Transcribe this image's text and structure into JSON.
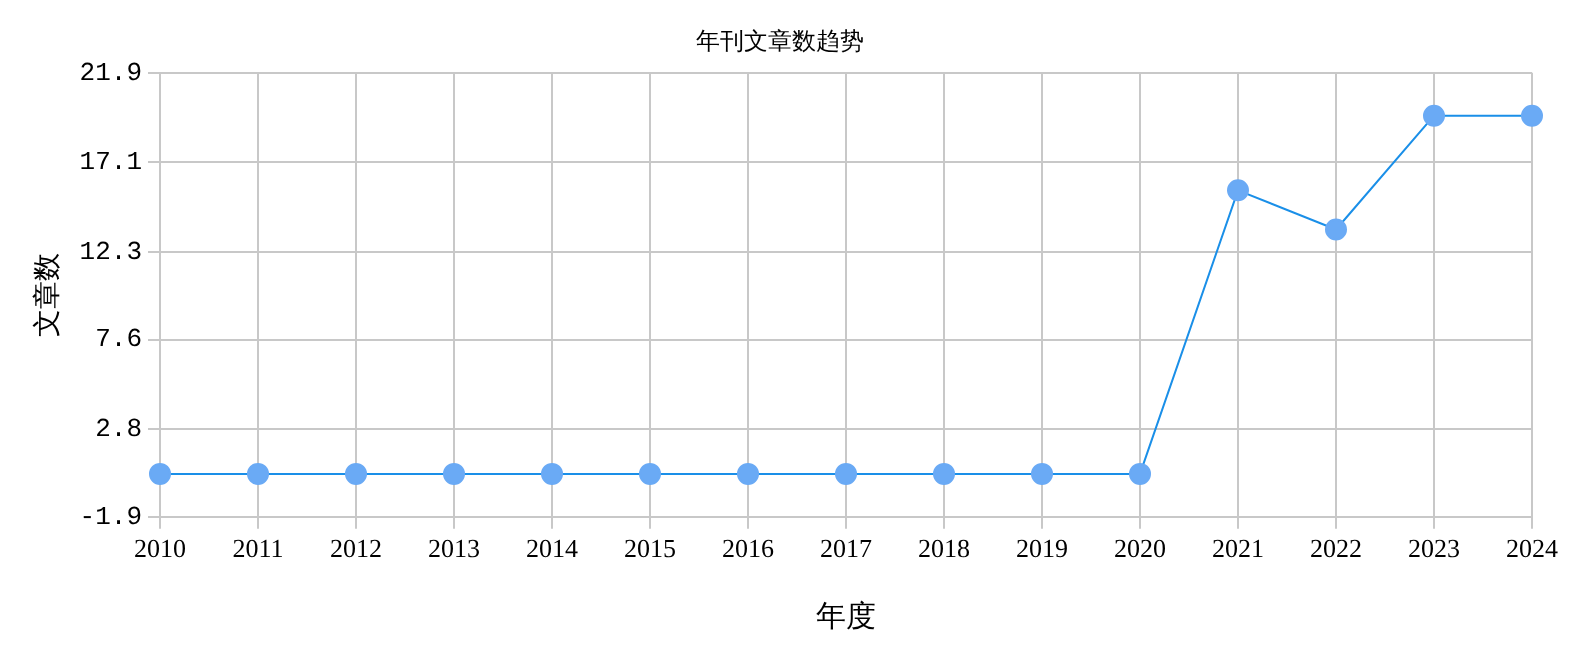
{
  "chart_data": {
    "type": "line",
    "title": "年刊文章数趋势",
    "xlabel": "年度",
    "ylabel": "文章数",
    "categories": [
      "2010",
      "2011",
      "2012",
      "2013",
      "2014",
      "2015",
      "2016",
      "2017",
      "2018",
      "2019",
      "2020",
      "2021",
      "2022",
      "2023",
      "2024"
    ],
    "series": [
      {
        "color": "#1a8fe8",
        "values": [
          0.4,
          0.4,
          0.4,
          0.4,
          0.4,
          0.4,
          0.4,
          0.4,
          0.4,
          0.4,
          0.4,
          15.6,
          13.5,
          19.6,
          19.6
        ]
      }
    ],
    "ylim": [
      -1.9,
      21.9
    ],
    "yticks": [
      -1.9,
      2.8,
      7.6,
      12.3,
      17.1,
      21.9
    ],
    "grid": true,
    "marker": "circle",
    "line_style": "solid",
    "legend": false
  }
}
